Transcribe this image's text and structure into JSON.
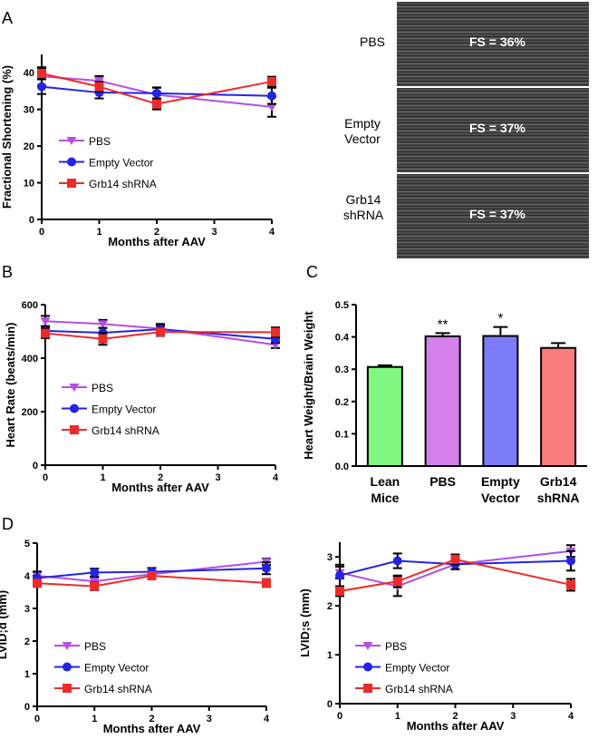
{
  "panel_labels": [
    "A",
    "B",
    "C",
    "D"
  ],
  "echo": [
    {
      "label": "PBS",
      "fs": "FS = 36%"
    },
    {
      "label": "Empty Vector",
      "fs": "FS = 37%"
    },
    {
      "label": "Grb14 shRNA",
      "fs": "FS = 37%"
    }
  ],
  "colors": {
    "PBS": "#b44ee6",
    "Empty Vector": "#2323e6",
    "Grb14 shRNA": "#ee2b2b",
    "axis": "#000000"
  },
  "chart_data": [
    {
      "id": "A",
      "type": "line",
      "xlabel": "Months after AAV",
      "ylabel": "Fractional Shortening (%)",
      "x": [
        0,
        1,
        2,
        4
      ],
      "xticks": [
        0,
        1,
        2,
        3,
        4
      ],
      "yticks": [
        0,
        10,
        20,
        30,
        40
      ],
      "ylim": [
        0,
        45
      ],
      "legend": "center-left",
      "series": [
        {
          "name": "PBS",
          "marker": "triangle-down",
          "values": [
            39.0,
            37.8,
            34.0,
            30.7
          ],
          "err": [
            2.5,
            1.3,
            2.0,
            2.7
          ]
        },
        {
          "name": "Empty Vector",
          "marker": "circle",
          "values": [
            36.2,
            34.6,
            34.4,
            33.7
          ],
          "err": [
            2.0,
            1.6,
            1.5,
            2.2
          ]
        },
        {
          "name": "Grb14 shRNA",
          "marker": "square",
          "values": [
            39.8,
            36.2,
            31.5,
            37.6
          ],
          "err": [
            1.5,
            1.3,
            1.5,
            1.3
          ]
        }
      ]
    },
    {
      "id": "B",
      "type": "line",
      "xlabel": "Months after AAV",
      "ylabel": "Heart Rate (beats/min)",
      "x": [
        0,
        1,
        2,
        4
      ],
      "xticks": [
        0,
        1,
        2,
        3,
        4
      ],
      "yticks": [
        0,
        200,
        400,
        600
      ],
      "ylim": [
        0,
        600
      ],
      "legend": "center-left",
      "series": [
        {
          "name": "PBS",
          "marker": "triangle-down",
          "values": [
            538,
            528,
            510,
            450
          ],
          "err": [
            20,
            15,
            18,
            12
          ]
        },
        {
          "name": "Empty Vector",
          "marker": "circle",
          "values": [
            502,
            495,
            508,
            472
          ],
          "err": [
            18,
            18,
            15,
            15
          ]
        },
        {
          "name": "Grb14 shRNA",
          "marker": "square",
          "values": [
            493,
            472,
            498,
            497
          ],
          "err": [
            18,
            22,
            15,
            18
          ]
        }
      ]
    },
    {
      "id": "C",
      "type": "bar",
      "ylabel": "Heart Weight/Brain Weight",
      "categories": [
        "Lean Mice",
        "PBS",
        "Empty Vector",
        "Grb14 shRNA"
      ],
      "values": [
        0.307,
        0.402,
        0.403,
        0.366
      ],
      "err": [
        0.005,
        0.01,
        0.028,
        0.015
      ],
      "annotations": [
        "",
        "**",
        "*",
        ""
      ],
      "bar_colors": [
        "#80f77f",
        "#d57fec",
        "#7c7cf9",
        "#f97d7d"
      ],
      "yticks": [
        "0.0",
        "0.1",
        "0.2",
        "0.3",
        "0.4",
        "0.5"
      ],
      "ylim": [
        0,
        0.5
      ]
    },
    {
      "id": "D1",
      "type": "line",
      "xlabel": "Months after AAV",
      "ylabel": "LVID;d (mm)",
      "x": [
        0,
        1,
        2,
        4
      ],
      "xticks": [
        0,
        1,
        2,
        3,
        4
      ],
      "yticks": [
        0,
        1,
        2,
        3,
        4,
        5
      ],
      "ylim": [
        0,
        5
      ],
      "legend": "bottom-left",
      "series": [
        {
          "name": "PBS",
          "marker": "triangle-down",
          "values": [
            4.0,
            3.83,
            4.05,
            4.43
          ],
          "err": [
            0.12,
            0.1,
            0.08,
            0.1
          ]
        },
        {
          "name": "Empty Vector",
          "marker": "circle",
          "values": [
            3.93,
            4.1,
            4.12,
            4.23
          ],
          "err": [
            0.2,
            0.12,
            0.12,
            0.18
          ]
        },
        {
          "name": "Grb14 shRNA",
          "marker": "square",
          "values": [
            3.77,
            3.68,
            4.0,
            3.78
          ],
          "err": [
            0.08,
            0.12,
            0.06,
            0.12
          ]
        }
      ]
    },
    {
      "id": "D2",
      "type": "line",
      "xlabel": "Months after AAV",
      "ylabel": "LVID;s (mm)",
      "x": [
        0,
        1,
        2,
        4
      ],
      "xticks": [
        0,
        1,
        2,
        3,
        4
      ],
      "yticks": [
        0,
        1,
        2,
        3
      ],
      "ylim": [
        0,
        3.3
      ],
      "legend": "bottom-left",
      "series": [
        {
          "name": "PBS",
          "marker": "triangle-down",
          "values": [
            2.68,
            2.4,
            2.85,
            3.12
          ],
          "err": [
            0.12,
            0.2,
            0.1,
            0.12
          ]
        },
        {
          "name": "Empty Vector",
          "marker": "circle",
          "values": [
            2.62,
            2.92,
            2.85,
            2.92
          ],
          "err": [
            0.22,
            0.15,
            0.1,
            0.2
          ]
        },
        {
          "name": "Grb14 shRNA",
          "marker": "square",
          "values": [
            2.3,
            2.5,
            2.95,
            2.43
          ],
          "err": [
            0.1,
            0.12,
            0.1,
            0.12
          ]
        }
      ]
    }
  ]
}
